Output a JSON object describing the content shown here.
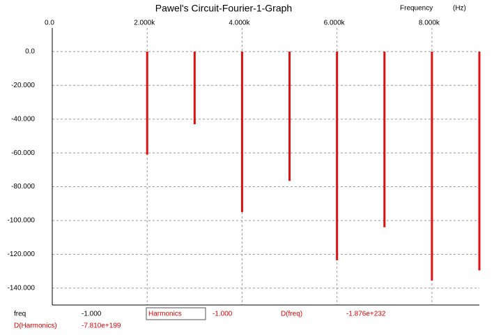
{
  "chart_data": {
    "type": "stem",
    "title": "Pawel's Circuit-Fourier-1-Graph",
    "x_label": "Frequency",
    "x_unit": "(Hz)",
    "x": [
      2000,
      3000,
      4000,
      5000,
      6000,
      7000,
      8000,
      9000
    ],
    "values": [
      -61,
      -43,
      -95,
      -76.5,
      -123.5,
      -104,
      -135.5,
      -129.5
    ],
    "color": "#dd1111",
    "xlim": [
      0,
      9000
    ],
    "xticks": [
      {
        "value": 0,
        "label": "0.0"
      },
      {
        "value": 2000,
        "label": "2.000k"
      },
      {
        "value": 4000,
        "label": "4.000k"
      },
      {
        "value": 6000,
        "label": "6.000k"
      },
      {
        "value": 8000,
        "label": "8.000k"
      }
    ],
    "ylim": [
      -150,
      14
    ],
    "yticks": [
      {
        "value": 0,
        "label": "0.0"
      },
      {
        "value": -20,
        "label": "-20.000"
      },
      {
        "value": -40,
        "label": "-40.000"
      },
      {
        "value": -60,
        "label": "-60.000"
      },
      {
        "value": -80,
        "label": "-80.000"
      },
      {
        "value": -100,
        "label": "-100.000"
      },
      {
        "value": -120,
        "label": "-120.000"
      },
      {
        "value": -140,
        "label": "-140.000"
      }
    ],
    "grid": true
  },
  "readout": {
    "x_name": "freq",
    "x_value": "-1.000",
    "trace": "Harmonics",
    "trace_value": "-1.000",
    "dx_name": "D(freq)",
    "dx_value": "-1.876e+232",
    "dy_name": "D(Harmonics)",
    "dy_value": "-7.810e+199"
  }
}
